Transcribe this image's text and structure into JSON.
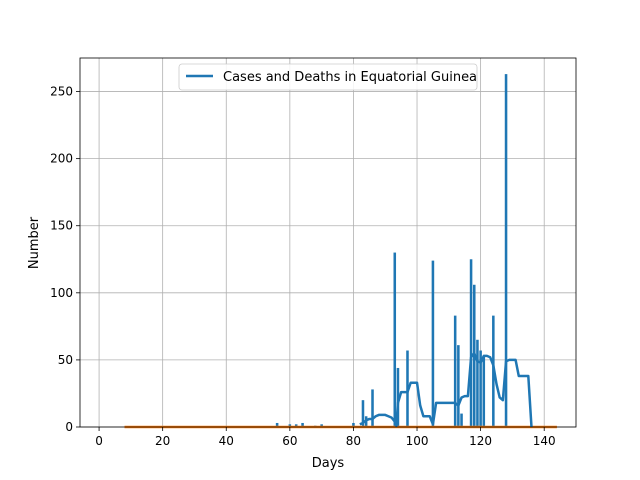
{
  "chart_data": {
    "type": "bar",
    "xlabel": "Days",
    "ylabel": "Number",
    "xlim": [
      -6,
      150
    ],
    "ylim": [
      0,
      275
    ],
    "xticks": [
      0,
      20,
      40,
      60,
      80,
      100,
      120,
      140
    ],
    "yticks": [
      0,
      50,
      100,
      150,
      200,
      250
    ],
    "grid": true,
    "legend_position": "top-center",
    "legend": [
      "Cases and Deaths in Equatorial Guinea"
    ],
    "colors": {
      "cases": "#1f77b4",
      "deaths": "#ff7f0e",
      "grid": "#b0b0b0"
    },
    "bar_width": 0.8,
    "case_bars": [
      {
        "x": 56,
        "y": 3
      },
      {
        "x": 60,
        "y": 2
      },
      {
        "x": 62,
        "y": 2
      },
      {
        "x": 64,
        "y": 3
      },
      {
        "x": 68,
        "y": 1
      },
      {
        "x": 70,
        "y": 2
      },
      {
        "x": 80,
        "y": 3
      },
      {
        "x": 83,
        "y": 20
      },
      {
        "x": 84,
        "y": 8
      },
      {
        "x": 86,
        "y": 28
      },
      {
        "x": 93,
        "y": 130
      },
      {
        "x": 94,
        "y": 44
      },
      {
        "x": 97,
        "y": 57
      },
      {
        "x": 105,
        "y": 124
      },
      {
        "x": 112,
        "y": 83
      },
      {
        "x": 113,
        "y": 61
      },
      {
        "x": 114,
        "y": 10
      },
      {
        "x": 117,
        "y": 125
      },
      {
        "x": 118,
        "y": 106
      },
      {
        "x": 119,
        "y": 65
      },
      {
        "x": 120,
        "y": 57
      },
      {
        "x": 121,
        "y": 53
      },
      {
        "x": 124,
        "y": 83
      },
      {
        "x": 128,
        "y": 263
      }
    ],
    "death_points": [
      [
        8,
        0
      ],
      [
        144,
        0
      ]
    ],
    "line_points": [
      [
        82,
        2
      ],
      [
        83,
        3
      ],
      [
        84,
        5
      ],
      [
        85,
        6
      ],
      [
        86,
        6
      ],
      [
        87,
        8
      ],
      [
        88,
        9
      ],
      [
        89,
        9
      ],
      [
        90,
        9
      ],
      [
        91,
        8
      ],
      [
        92,
        7
      ],
      [
        93,
        4
      ],
      [
        93.5,
        1
      ],
      [
        94,
        18
      ],
      [
        95,
        26
      ],
      [
        96,
        26
      ],
      [
        97,
        26
      ],
      [
        98,
        33
      ],
      [
        99,
        33
      ],
      [
        100,
        33
      ],
      [
        101,
        16
      ],
      [
        102,
        8
      ],
      [
        103,
        8
      ],
      [
        104,
        8
      ],
      [
        105,
        2
      ],
      [
        106,
        18
      ],
      [
        107,
        18
      ],
      [
        108,
        18
      ],
      [
        109,
        18
      ],
      [
        110,
        18
      ],
      [
        111,
        18
      ],
      [
        112,
        18
      ],
      [
        113,
        16
      ],
      [
        114,
        22
      ],
      [
        115,
        23
      ],
      [
        116,
        23
      ],
      [
        117,
        52
      ],
      [
        118,
        55
      ],
      [
        119,
        49
      ],
      [
        120,
        48
      ],
      [
        121,
        53
      ],
      [
        122,
        53
      ],
      [
        123,
        52
      ],
      [
        124,
        46
      ],
      [
        125,
        32
      ],
      [
        126,
        22
      ],
      [
        127,
        20
      ],
      [
        128,
        49
      ],
      [
        129,
        50
      ],
      [
        130,
        50
      ],
      [
        131,
        50
      ],
      [
        132,
        38
      ],
      [
        133,
        38
      ],
      [
        134,
        38
      ],
      [
        135,
        38
      ],
      [
        136,
        0
      ]
    ]
  }
}
